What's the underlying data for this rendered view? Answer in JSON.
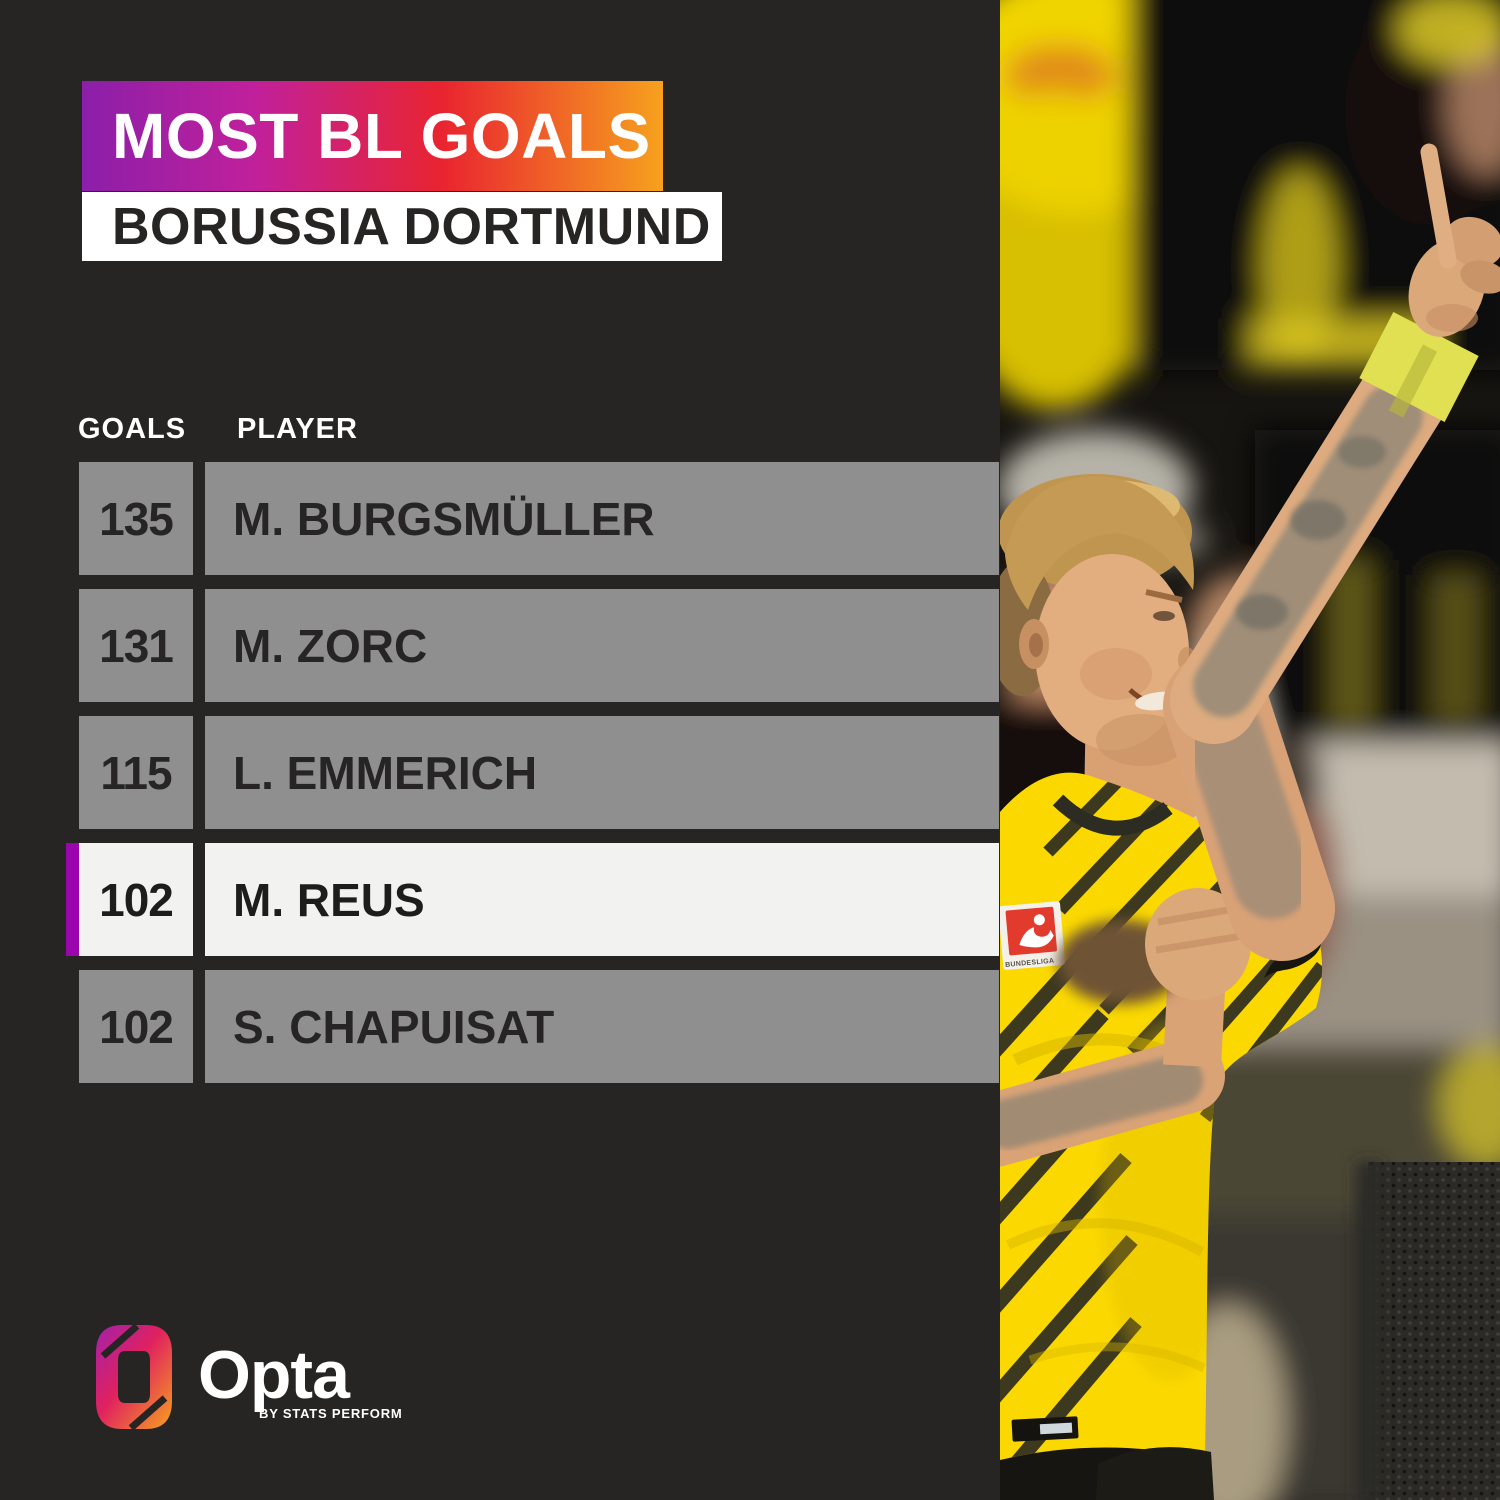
{
  "header": {
    "title": "MOST BL GOALS",
    "subtitle": "BORUSSIA DORTMUND"
  },
  "table": {
    "goals_header": "GOALS",
    "player_header": "PLAYER",
    "rows": [
      {
        "goals": "135",
        "player": "M. BURGSMÜLLER",
        "highlighted": false
      },
      {
        "goals": "131",
        "player": "M. ZORC",
        "highlighted": false
      },
      {
        "goals": "115",
        "player": "L. EMMERICH",
        "highlighted": false
      },
      {
        "goals": "102",
        "player": "M. REUS",
        "highlighted": true
      },
      {
        "goals": "102",
        "player": "S. CHAPUISAT",
        "highlighted": false
      }
    ]
  },
  "branding": {
    "logo_text": "Opta",
    "byline": "BY STATS PERFORM"
  },
  "photo": {
    "bundesliga_patch_label": "BUNDESLIGA"
  },
  "colors": {
    "background": "#262524",
    "row_gray": "#8F8F8F",
    "row_highlight": "#F2F2F1",
    "highlight_accent": "#9A05AE",
    "banner_gradient_start": "#8B1FA9",
    "banner_gradient_mid1": "#C1209B",
    "banner_gradient_mid2": "#E92430",
    "banner_gradient_end": "#F6A11E"
  },
  "chart_data": {
    "type": "table",
    "title": "MOST BL GOALS",
    "subtitle": "BORUSSIA DORTMUND",
    "columns": [
      "GOALS",
      "PLAYER"
    ],
    "rows": [
      [
        135,
        "M. BURGSMÜLLER"
      ],
      [
        131,
        "M. ZORC"
      ],
      [
        115,
        "L. EMMERICH"
      ],
      [
        102,
        "M. REUS"
      ],
      [
        102,
        "S. CHAPUISAT"
      ]
    ],
    "highlighted_player": "M. REUS",
    "legend_position": "none",
    "grid": false
  }
}
